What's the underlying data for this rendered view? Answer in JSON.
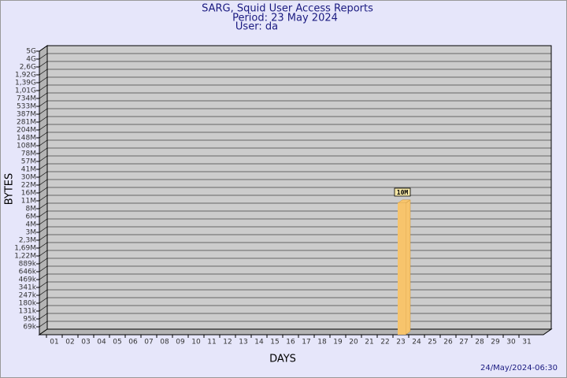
{
  "chart_data": {
    "type": "bar",
    "title": "SARG, Squid User Access Reports",
    "subtitle": "Period: 23 May 2024",
    "user": "User: da",
    "x_label": "DAYS",
    "y_label": "BYTES",
    "footer": "24/May/2024-06:30",
    "categories": [
      "01",
      "02",
      "03",
      "04",
      "05",
      "06",
      "07",
      "08",
      "09",
      "10",
      "11",
      "12",
      "13",
      "14",
      "15",
      "16",
      "17",
      "18",
      "19",
      "20",
      "21",
      "22",
      "23",
      "24",
      "25",
      "26",
      "27",
      "28",
      "29",
      "30",
      "31"
    ],
    "values": [
      null,
      null,
      null,
      null,
      null,
      null,
      null,
      null,
      null,
      null,
      null,
      null,
      null,
      null,
      null,
      null,
      null,
      null,
      null,
      null,
      null,
      null,
      10000000,
      null,
      null,
      null,
      null,
      null,
      null,
      null,
      null
    ],
    "value_labels": [
      null,
      null,
      null,
      null,
      null,
      null,
      null,
      null,
      null,
      null,
      null,
      null,
      null,
      null,
      null,
      null,
      null,
      null,
      null,
      null,
      null,
      null,
      "10M",
      null,
      null,
      null,
      null,
      null,
      null,
      null,
      null
    ],
    "color": "#f7c46c",
    "ylim": [
      50000,
      5000000000
    ],
    "yticks": [
      {
        "value": 69000,
        "label": "69k"
      },
      {
        "value": 95000,
        "label": "95k"
      },
      {
        "value": 131000,
        "label": "131k"
      },
      {
        "value": 180000,
        "label": "180k"
      },
      {
        "value": 247000,
        "label": "247k"
      },
      {
        "value": 341000,
        "label": "341k"
      },
      {
        "value": 469000,
        "label": "469k"
      },
      {
        "value": 646000,
        "label": "646k"
      },
      {
        "value": 889000,
        "label": "889k"
      },
      {
        "value": 1220000,
        "label": "1,22M"
      },
      {
        "value": 1690000,
        "label": "1,69M"
      },
      {
        "value": 2300000,
        "label": "2,3M"
      },
      {
        "value": 3000000,
        "label": "3M"
      },
      {
        "value": 4000000,
        "label": "4M"
      },
      {
        "value": 6000000,
        "label": "6M"
      },
      {
        "value": 8000000,
        "label": "8M"
      },
      {
        "value": 11000000,
        "label": "11M"
      },
      {
        "value": 16000000,
        "label": "16M"
      },
      {
        "value": 22000000,
        "label": "22M"
      },
      {
        "value": 30000000,
        "label": "30M"
      },
      {
        "value": 41000000,
        "label": "41M"
      },
      {
        "value": 57000000,
        "label": "57M"
      },
      {
        "value": 78000000,
        "label": "78M"
      },
      {
        "value": 108000000,
        "label": "108M"
      },
      {
        "value": 148000000,
        "label": "148M"
      },
      {
        "value": 204000000,
        "label": "204M"
      },
      {
        "value": 281000000,
        "label": "281M"
      },
      {
        "value": 387000000,
        "label": "387M"
      },
      {
        "value": 533000000,
        "label": "533M"
      },
      {
        "value": 734000000,
        "label": "734M"
      },
      {
        "value": 1010000000,
        "label": "1,01G"
      },
      {
        "value": 1390000000,
        "label": "1,39G"
      },
      {
        "value": 1920000000,
        "label": "1,92G"
      },
      {
        "value": 2600000000,
        "label": "2,6G"
      },
      {
        "value": 4000000000,
        "label": "4G"
      },
      {
        "value": 5000000000,
        "label": "5G"
      }
    ],
    "grid": true
  }
}
